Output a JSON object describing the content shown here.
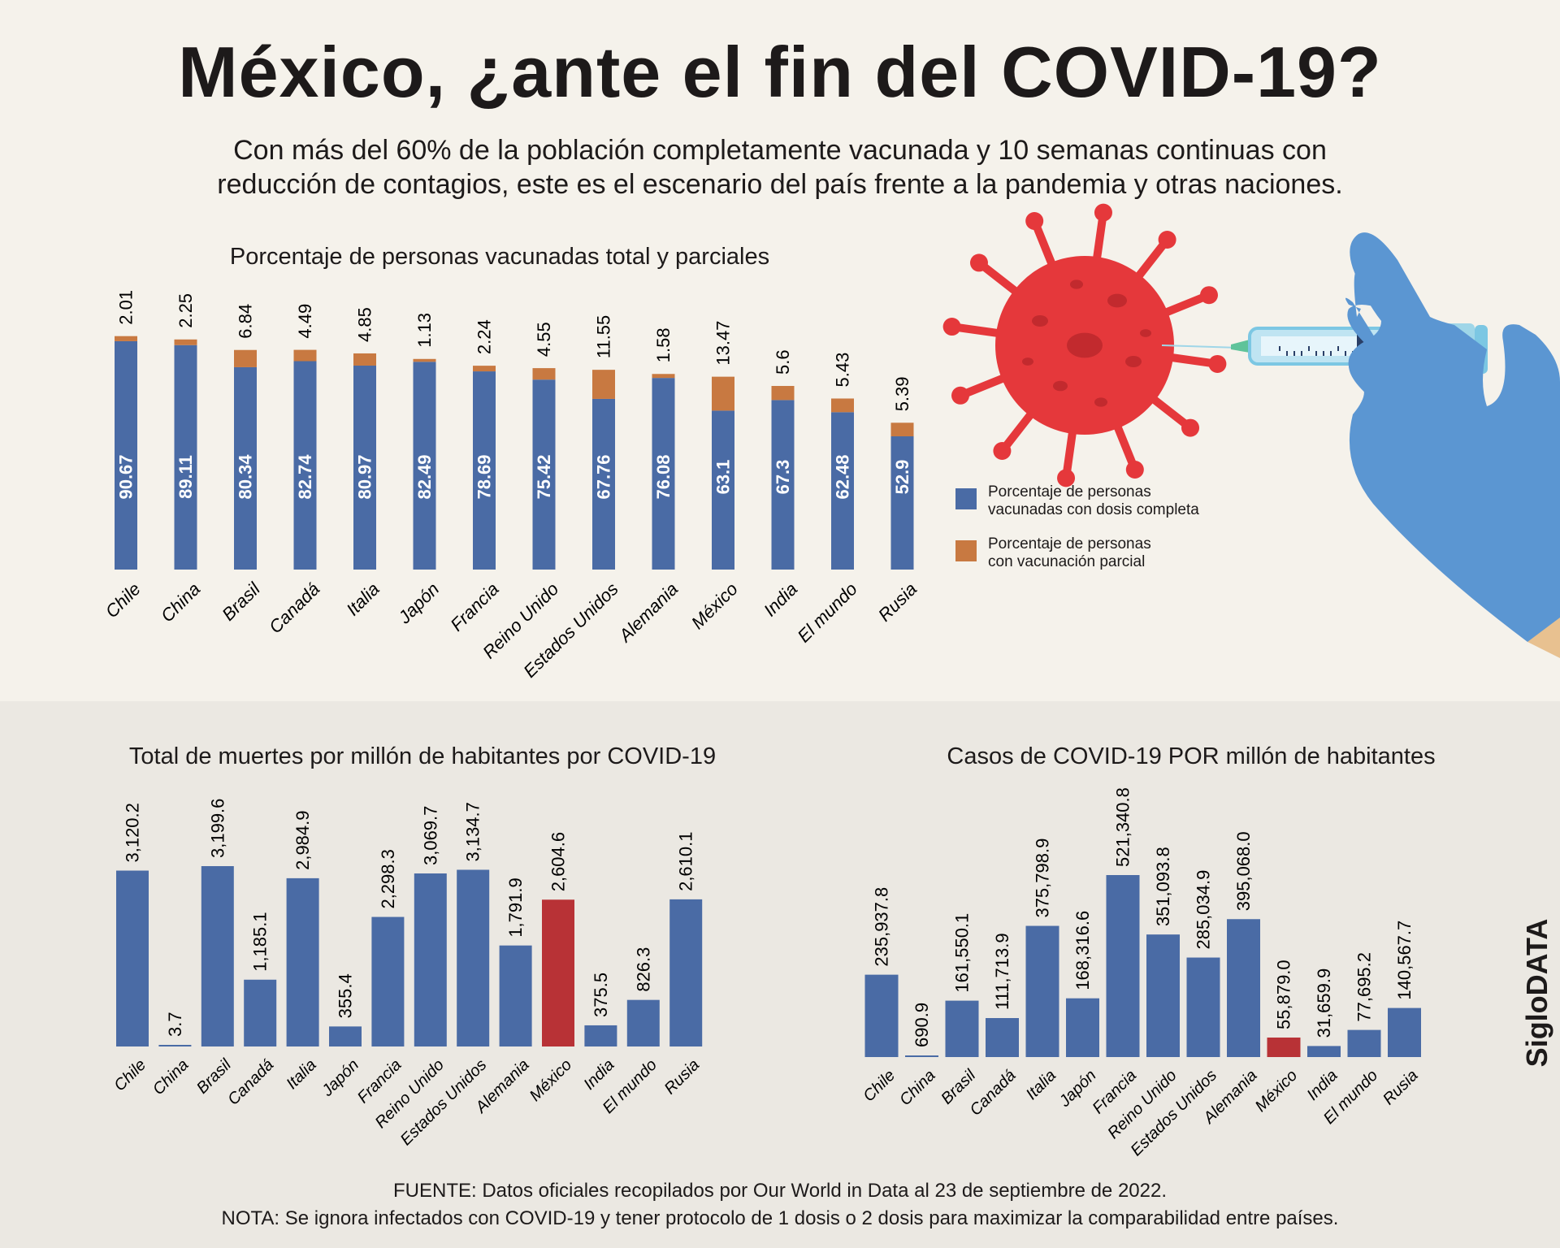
{
  "header": {
    "title": "México, ¿ante el fin del COVID-19?",
    "subtitle_line1": "Con más del 60% de la población completamente vacunada y 10 semanas continuas con",
    "subtitle_line2": "reducción de contagios, este es el escenario del país frente a la pandemia y otras naciones."
  },
  "colors": {
    "full": "#4a6ba5",
    "partial": "#c87941",
    "highlight": "#b83236",
    "top_bg": "#f5f2eb",
    "bottom_bg": "#ebe8e2"
  },
  "legend": {
    "full": "Porcentaje de personas vacunadas con dosis completa",
    "full_line1": "Porcentaje de personas",
    "full_line2": "vacunadas con dosis completa",
    "partial_line1": "Porcentaje de personas",
    "partial_line2": "con vacunación parcial"
  },
  "illustration": {
    "icons": [
      "virus-icon",
      "syringe-icon",
      "gloved-hand-icon"
    ]
  },
  "chart_data": [
    {
      "type": "bar",
      "stacked": true,
      "title": "Porcentaje de personas vacunadas total y parciales",
      "categories": [
        "Chile",
        "China",
        "Brasil",
        "Canadá",
        "Italia",
        "Japón",
        "Francia",
        "Reino Unido",
        "Estados Unidos",
        "Alemania",
        "México",
        "India",
        "El mundo",
        "Rusia"
      ],
      "series": [
        {
          "name": "Porcentaje de personas vacunadas con dosis completa",
          "values": [
            90.67,
            89.11,
            80.34,
            82.74,
            80.97,
            82.49,
            78.69,
            75.42,
            67.76,
            76.08,
            63.1,
            67.3,
            62.48,
            52.9
          ],
          "labels": [
            "90.67",
            "89.11",
            "80.34",
            "82.74",
            "80.97",
            "82.49",
            "78.69",
            "75.42",
            "67.76",
            "76.08",
            "63.1",
            "67.3",
            "62.48",
            "52.9"
          ]
        },
        {
          "name": "Porcentaje de personas con vacunación parcial",
          "values": [
            2.01,
            2.25,
            6.84,
            4.49,
            4.85,
            1.13,
            2.24,
            4.55,
            11.55,
            1.58,
            13.47,
            5.6,
            5.43,
            5.39
          ],
          "labels": [
            "2.01",
            "2.25",
            "6.84",
            "4.49",
            "4.85",
            "1.13",
            "2.24",
            "4.55",
            "11.55",
            "1.58",
            "13.47",
            "5.6",
            "5.43",
            "5.39"
          ]
        }
      ],
      "grid": false,
      "legend": "right"
    },
    {
      "type": "bar",
      "title": "Total de muertes por millón de habitantes por COVID-19",
      "categories": [
        "Chile",
        "China",
        "Brasil",
        "Canadá",
        "Italia",
        "Japón",
        "Francia",
        "Reino Unido",
        "Estados Unidos",
        "Alemania",
        "México",
        "India",
        "El mundo",
        "Rusia"
      ],
      "values": [
        3120.2,
        3.7,
        3199.6,
        1185.1,
        2984.9,
        355.4,
        2298.3,
        3069.7,
        3134.7,
        1791.9,
        2604.6,
        375.5,
        826.3,
        2610.1
      ],
      "labels": [
        "3,120.2",
        "3.7",
        "3,199.6",
        "1,185.1",
        "2,984.9",
        "355.4",
        "2,298.3",
        "3,069.7",
        "3,134.7",
        "1,791.9",
        "2,604.6",
        "375.5",
        "826.3",
        "2,610.1"
      ],
      "highlight": "México",
      "grid": false
    },
    {
      "type": "bar",
      "title": "Casos de COVID-19 POR millón de habitantes",
      "categories": [
        "Chile",
        "China",
        "Brasil",
        "Canadá",
        "Italia",
        "Japón",
        "Francia",
        "Reino Unido",
        "Estados Unidos",
        "Alemania",
        "México",
        "India",
        "El mundo",
        "Rusia"
      ],
      "values": [
        235937.8,
        690.9,
        161550.1,
        111713.9,
        375798.9,
        168316.6,
        521340.8,
        351093.8,
        285034.9,
        395068.0,
        55879.0,
        31659.9,
        77695.2,
        140567.7
      ],
      "labels": [
        "235,937.8",
        "690.9",
        "161,550.1",
        "111,713.9",
        "375,798.9",
        "168,316.6",
        "521,340.8",
        "351,093.8",
        "285,034.9",
        "395,068.0",
        "55,879.0",
        "31,659.9",
        "77,695.2",
        "140,567.7"
      ],
      "highlight": "México",
      "grid": false
    }
  ],
  "brand": "SigloDATA",
  "footer": {
    "source": "FUENTE: Datos oficiales recopilados por Our World in Data al 23 de septiembre de 2022.",
    "note": "NOTA: Se ignora infectados con COVID-19 y tener protocolo de 1 dosis o 2 dosis para maximizar la comparabilidad entre países."
  }
}
